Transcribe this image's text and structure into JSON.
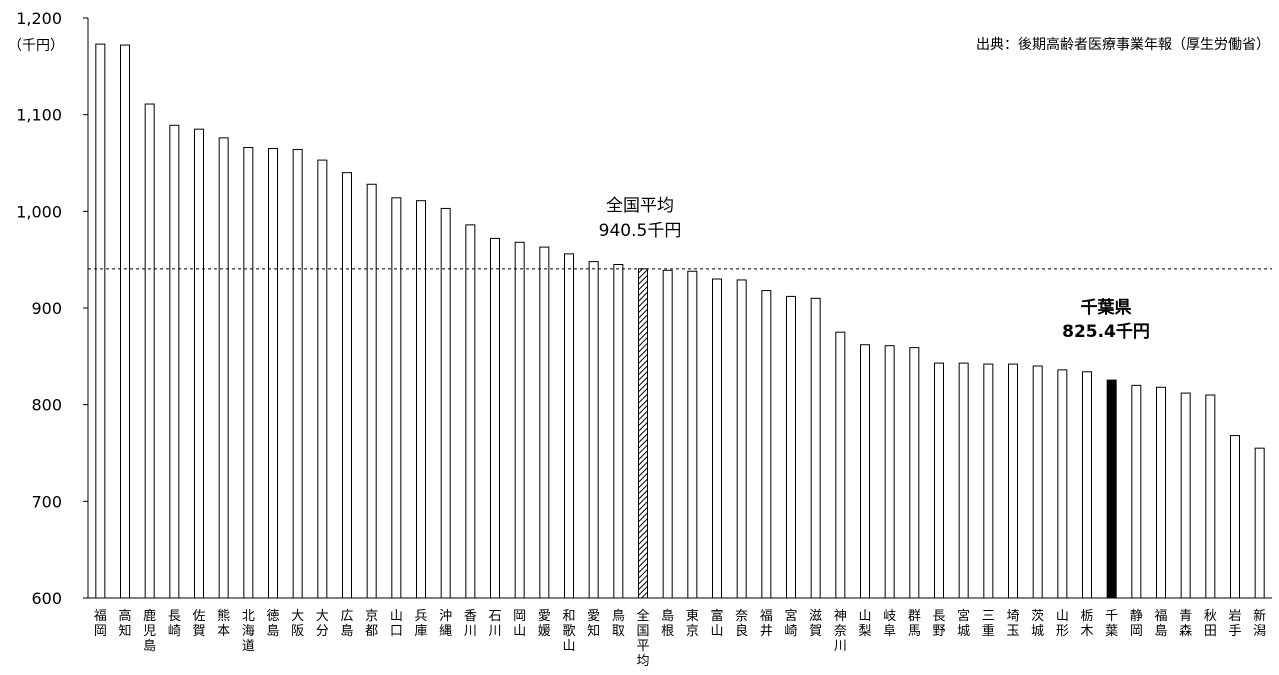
{
  "chart_data": {
    "type": "bar",
    "y_unit": "（千円）",
    "source": "出典：後期高齢者医療事業年報（厚生労働省）",
    "ylim": [
      600,
      1200
    ],
    "yticks": [
      "600",
      "700",
      "800",
      "900",
      "1,000",
      "1,100",
      "1,200"
    ],
    "grid": false,
    "reference_line": {
      "value": 940.5,
      "style": "dashed"
    },
    "annotations": {
      "national": {
        "line1": "全国平均",
        "line2": "940.5千円"
      },
      "chiba": {
        "line1": "千葉県",
        "line2": "825.4千円"
      }
    },
    "categories": [
      "福岡",
      "高知",
      "鹿児島",
      "長崎",
      "佐賀",
      "熊本",
      "北海道",
      "徳島",
      "大阪",
      "大分",
      "広島",
      "京都",
      "山口",
      "兵庫",
      "沖縄",
      "香川",
      "石川",
      "岡山",
      "愛媛",
      "和歌山",
      "愛知",
      "鳥取",
      "全国平均",
      "島根",
      "東京",
      "富山",
      "奈良",
      "福井",
      "宮崎",
      "滋賀",
      "神奈川",
      "山梨",
      "岐阜",
      "群馬",
      "長野",
      "宮城",
      "三重",
      "埼玉",
      "茨城",
      "山形",
      "栃木",
      "千葉",
      "静岡",
      "福島",
      "青森",
      "秋田",
      "岩手",
      "新潟"
    ],
    "values": [
      1173,
      1172,
      1111,
      1089,
      1085,
      1076,
      1066,
      1065,
      1064,
      1053,
      1040,
      1028,
      1014,
      1011,
      1003,
      986,
      972,
      968,
      963,
      956,
      948,
      945,
      940.5,
      939,
      938,
      930,
      929,
      918,
      912,
      910,
      875,
      862,
      861,
      859,
      843,
      843,
      842,
      842,
      840,
      836,
      834,
      825.4,
      820,
      818,
      812,
      810,
      768,
      755
    ],
    "highlight": {
      "全国平均": "hatched",
      "千葉": "#000000"
    },
    "bar_fill": "#ffffff",
    "bar_stroke": "#000000"
  }
}
